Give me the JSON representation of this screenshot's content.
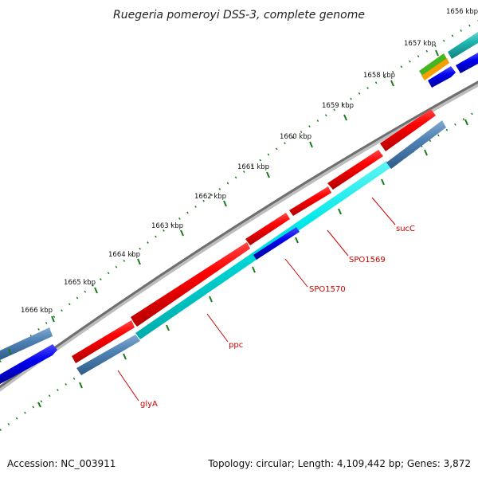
{
  "title": "Ruegeria pomeroyi DSS-3, complete genome",
  "footer": {
    "accession": "Accession: NC_003911",
    "summary": "Topology: circular; Length: 4,109,442 bp; Genes: 3,872"
  },
  "ruler_labels": [
    "1656 kbp",
    "1657 kbp",
    "1658 kbp",
    "1659 kbp",
    "1660 kbp",
    "1661 kbp",
    "1662 kbp",
    "1663 kbp",
    "1664 kbp",
    "1665 kbp",
    "1666 kbp"
  ],
  "gene_labels": [
    "sucC",
    "SPO1569",
    "SPO1570",
    "ppc",
    "glyA"
  ],
  "colors": {
    "cds_forward": "#ff0000",
    "cds_reverse": "#00e5e5",
    "cds_blue": "#0000ee",
    "steelblue": "#4f82b4",
    "backbone": "#6e6e6e",
    "ruler_ticks": "#1a7a1a",
    "label_red": "#cc0000"
  }
}
